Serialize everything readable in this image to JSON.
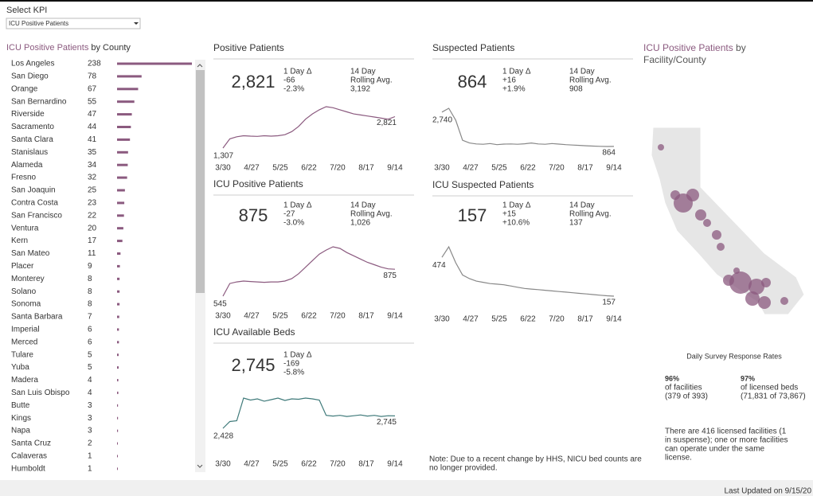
{
  "header": {
    "select_label": "Select KPI",
    "select_value": "ICU Positive Patients"
  },
  "county_panel": {
    "title_highlight": "ICU Positive Patients",
    "title_rest": " by County",
    "counties": [
      "Los Angeles",
      "San Diego",
      "Orange",
      "San Bernardino",
      "Riverside",
      "Sacramento",
      "Santa Clara",
      "Stanislaus",
      "Alameda",
      "Fresno",
      "San Joaquin",
      "Contra Costa",
      "San Francisco",
      "Ventura",
      "Kern",
      "San Mateo",
      "Placer",
      "Monterey",
      "Solano",
      "Sonoma",
      "Santa Barbara",
      "Imperial",
      "Merced",
      "Tulare",
      "Yuba",
      "Madera",
      "San Luis Obispo",
      "Butte",
      "Kings",
      "Napa",
      "Santa Cruz",
      "Calaveras",
      "Humboldt"
    ],
    "values": [
      238,
      78,
      67,
      55,
      47,
      44,
      41,
      35,
      34,
      32,
      25,
      23,
      22,
      20,
      17,
      11,
      9,
      8,
      8,
      8,
      7,
      6,
      6,
      5,
      5,
      4,
      4,
      3,
      3,
      3,
      2,
      1,
      1
    ]
  },
  "timeline": [
    "3/30",
    "4/27",
    "5/25",
    "6/22",
    "7/20",
    "8/17",
    "9/14"
  ],
  "cards": [
    {
      "title": "Positive Patients",
      "value": "2,821",
      "delta_title": "1 Day Δ",
      "delta": "-66",
      "delta_pct": "-2.3%",
      "avg_title_1": "14 Day",
      "avg_title_2": "Rolling Avg.",
      "avg": "3,192",
      "start_label": "1,307",
      "end_label": "2,821",
      "color": "#8b5a7f",
      "values": [
        1307,
        1750,
        1850,
        1900,
        1880,
        1870,
        1900,
        1880,
        1900,
        1950,
        2100,
        2350,
        2700,
        2950,
        3150,
        3300,
        3250,
        3150,
        3050,
        2950,
        2900,
        2850,
        2800,
        2750,
        2700,
        2821
      ]
    },
    {
      "title": "ICU Positive Patients",
      "value": "875",
      "delta_title": "1 Day Δ",
      "delta": "-27",
      "delta_pct": "-3.0%",
      "avg_title_1": "14 Day",
      "avg_title_2": "Rolling Avg.",
      "avg": "1,026",
      "start_label": "545",
      "end_label": "875",
      "color": "#8b5a7f",
      "values": [
        545,
        700,
        720,
        730,
        725,
        720,
        715,
        720,
        720,
        730,
        760,
        820,
        900,
        980,
        1060,
        1110,
        1150,
        1130,
        1080,
        1040,
        1000,
        960,
        930,
        900,
        880,
        875
      ]
    },
    {
      "title": "ICU Available Beds",
      "value": "2,745",
      "delta_title": "1 Day Δ",
      "delta": "-169",
      "delta_pct": "-5.8%",
      "start_label": "2,428",
      "end_label": "2,745",
      "color": "#3f7a7a",
      "values": [
        2428,
        2600,
        2620,
        3200,
        3150,
        3180,
        3120,
        3160,
        3200,
        3140,
        3180,
        3170,
        3200,
        3180,
        3150,
        2760,
        2740,
        2760,
        2730,
        2750,
        2770,
        2740,
        2760,
        2730,
        2750,
        2745
      ]
    },
    {
      "title": "Suspected Patients",
      "value": "864",
      "delta_title": "1 Day Δ",
      "delta": "+16",
      "delta_pct": "+1.9%",
      "avg_title_1": "14 Day",
      "avg_title_2": "Rolling Avg.",
      "avg": "908",
      "start_label": "2,740",
      "end_label": "864",
      "color": "#888888",
      "values": [
        2740,
        2950,
        2300,
        1200,
        1050,
        1000,
        980,
        1020,
        960,
        990,
        1000,
        980,
        1010,
        1050,
        1000,
        980,
        1020,
        990,
        960,
        940,
        920,
        900,
        880,
        870,
        860,
        864
      ]
    },
    {
      "title": "ICU Suspected Patients",
      "value": "157",
      "delta_title": "1 Day Δ",
      "delta": "+15",
      "delta_pct": "+10.6%",
      "avg_title_1": "14 Day",
      "avg_title_2": "Rolling Avg.",
      "avg": "137",
      "start_label": "474",
      "end_label": "157",
      "color": "#888888",
      "values": [
        474,
        560,
        430,
        330,
        300,
        280,
        270,
        260,
        255,
        250,
        240,
        230,
        220,
        215,
        210,
        205,
        200,
        195,
        190,
        185,
        180,
        175,
        170,
        165,
        160,
        157
      ]
    }
  ],
  "map_panel": {
    "title_highlight": "ICU Positive Patients",
    "title_rest": " by",
    "title_line2": "Facility/County",
    "rates_title": "Daily Survey Response Rates",
    "rates": [
      {
        "pct": "96%",
        "label": "of facilities",
        "detail": "(379 of 393)"
      },
      {
        "pct": "97%",
        "label": "of licensed beds",
        "detail": "(71,831 of 73,867)"
      }
    ],
    "info_lines": [
      "There are 416 licensed facilities (1",
      "in suspense); one or more facilities",
      "can operate under the same",
      "license."
    ]
  },
  "note_lines": [
    "Note: Due to a recent change by HHS, NICU bed counts are",
    "no longer provided."
  ],
  "footer": "Last Updated on 9/15/20"
}
